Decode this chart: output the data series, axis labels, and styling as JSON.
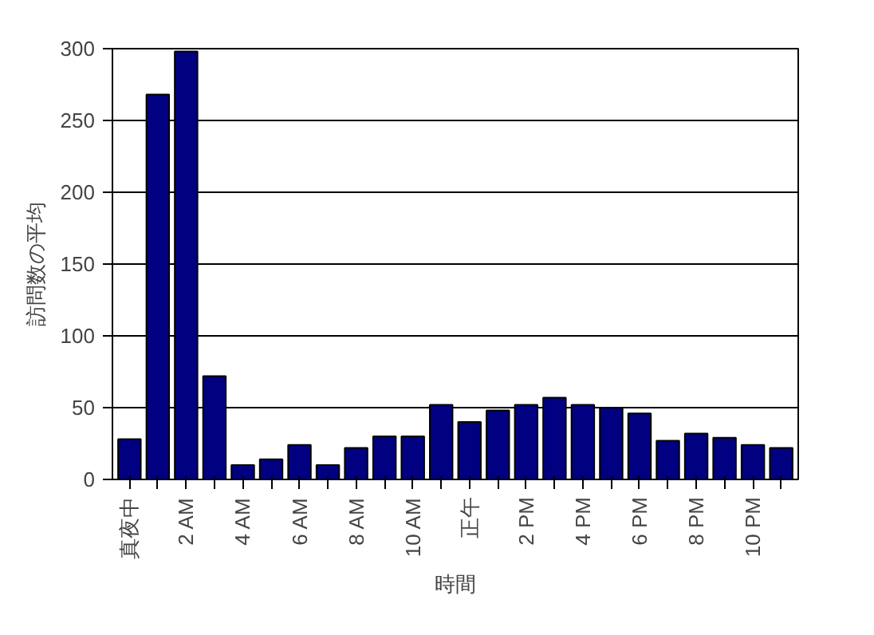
{
  "chart_data": {
    "type": "bar",
    "xlabel": "時間",
    "ylabel": "訪問数の平均",
    "categories": [
      "真夜中",
      null,
      "2 AM",
      null,
      "4 AM",
      null,
      "6 AM",
      null,
      "8 AM",
      null,
      "10 AM",
      null,
      "正午",
      null,
      "2 PM",
      null,
      "4 PM",
      null,
      "6 PM",
      null,
      "8 PM",
      null,
      "10 PM",
      null
    ],
    "values": [
      28,
      268,
      298,
      72,
      10,
      14,
      24,
      10,
      22,
      30,
      30,
      52,
      40,
      48,
      52,
      57,
      52,
      50,
      46,
      27,
      32,
      29,
      24,
      22
    ],
    "color": "#000080",
    "ylim": [
      0,
      300
    ],
    "yticks": [
      0,
      50,
      100,
      150,
      200,
      250,
      300
    ],
    "grid": "y"
  }
}
